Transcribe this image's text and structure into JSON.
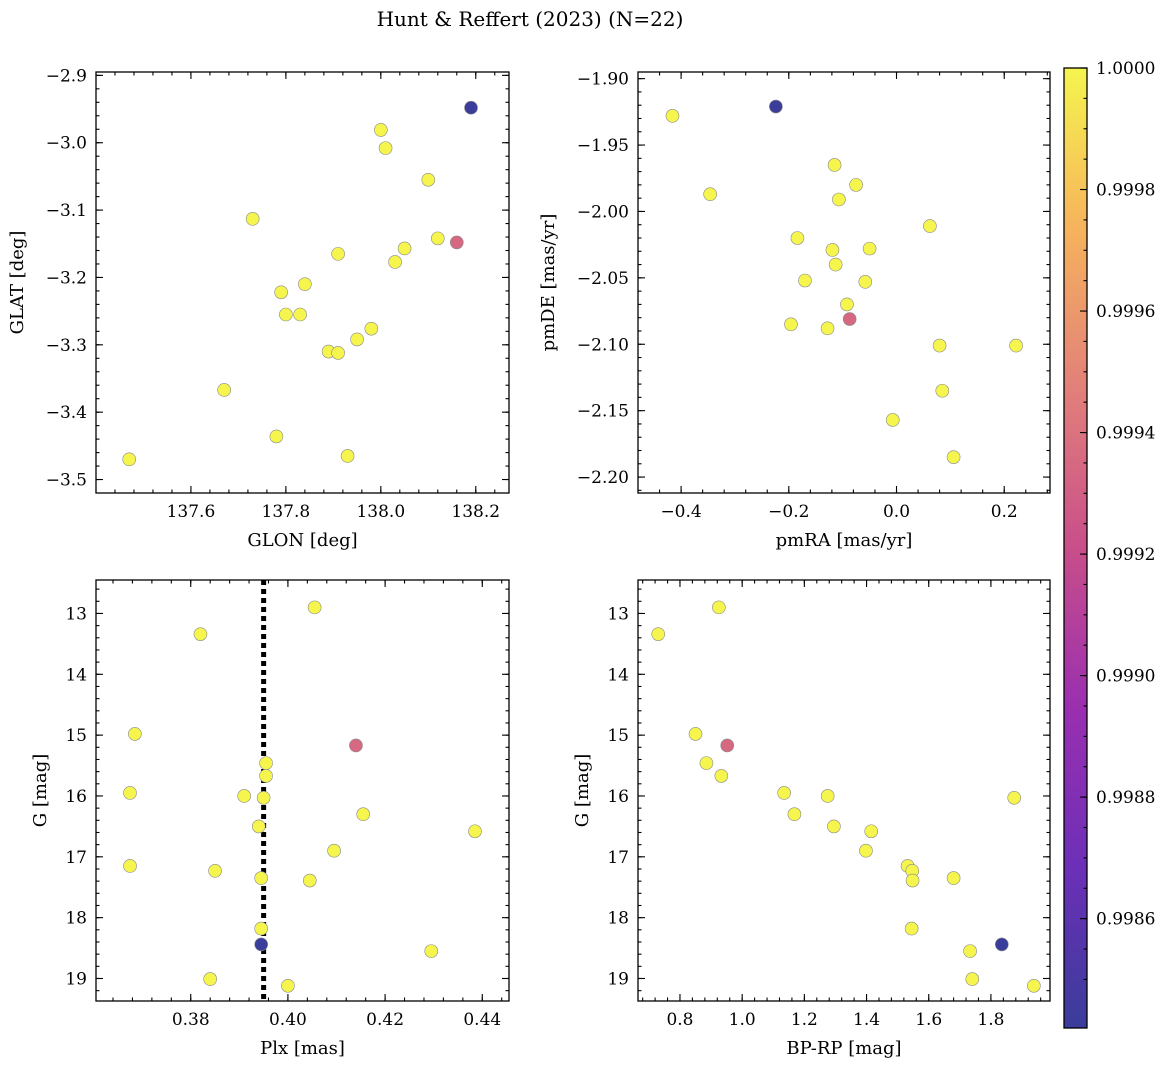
{
  "figure": {
    "title": "Hunt & Reffert (2023) (N=22)"
  },
  "colorbar": {
    "min": 0.99842,
    "max": 1.0,
    "ticks": [
      0.9986,
      0.9988,
      0.999,
      0.9992,
      0.9994,
      0.9996,
      0.9998,
      1.0
    ],
    "tick_labels": [
      "0.9986",
      "0.9988",
      "0.9990",
      "0.9992",
      "0.9994",
      "0.9996",
      "0.9998",
      "1.0000"
    ],
    "colormap": "plasma-like",
    "colors": [
      "#3a3d9a",
      "#6c2fb8",
      "#9a2fb0",
      "#c94e8a",
      "#e2807a",
      "#f6b35c",
      "#f5f54e"
    ]
  },
  "chart_data": [
    {
      "type": "scatter",
      "id": "glon-glat",
      "xlabel": "GLON [deg]",
      "ylabel": "GLAT [deg]",
      "xlim": [
        137.4,
        138.27
      ],
      "ylim": [
        -3.52,
        -2.895
      ],
      "y_inverted": false,
      "xticks": [
        137.6,
        137.8,
        138.0,
        138.2
      ],
      "xtick_labels": [
        "137.6",
        "137.8",
        "138.0",
        "138.2"
      ],
      "yticks": [
        -2.9,
        -3.0,
        -3.1,
        -3.2,
        -3.3,
        -3.4,
        -3.5
      ],
      "ytick_labels": [
        "−2.9",
        "−3.0",
        "−3.1",
        "−3.2",
        "−3.3",
        "−3.4",
        "−3.5"
      ],
      "x": [
        138.19,
        138.0,
        138.01,
        138.1,
        137.73,
        138.12,
        138.16,
        137.91,
        138.05,
        138.03,
        137.84,
        137.79,
        137.8,
        137.83,
        137.98,
        137.95,
        137.89,
        137.91,
        137.67,
        137.78,
        137.93,
        137.47
      ],
      "y": [
        -2.948,
        -2.981,
        -3.008,
        -3.055,
        -3.113,
        -3.142,
        -3.148,
        -3.165,
        -3.157,
        -3.177,
        -3.21,
        -3.222,
        -3.255,
        -3.255,
        -3.276,
        -3.292,
        -3.31,
        -3.312,
        -3.367,
        -3.436,
        -3.465,
        -3.47
      ],
      "prob": [
        0.99842,
        1.0,
        1.0,
        1.0,
        1.0,
        1.0,
        0.99935,
        1.0,
        1.0,
        1.0,
        1.0,
        1.0,
        1.0,
        1.0,
        1.0,
        1.0,
        1.0,
        1.0,
        1.0,
        1.0,
        1.0,
        1.0
      ]
    },
    {
      "type": "scatter",
      "id": "pmra-pmde",
      "xlabel": "pmRA [mas/yr]",
      "ylabel": "pmDE [mas/yr]",
      "xlim": [
        -0.48,
        0.285
      ],
      "ylim": [
        -2.212,
        -1.895
      ],
      "y_inverted": false,
      "xticks": [
        -0.4,
        -0.2,
        0.0,
        0.2
      ],
      "xtick_labels": [
        "−0.4",
        "−0.2",
        "0.0",
        "0.2"
      ],
      "yticks": [
        -1.9,
        -1.95,
        -2.0,
        -2.05,
        -2.1,
        -2.15,
        -2.2
      ],
      "ytick_labels": [
        "−1.90",
        "−1.95",
        "−2.00",
        "−2.05",
        "−2.10",
        "−2.15",
        "−2.20"
      ],
      "x": [
        -0.224,
        -0.416,
        -0.346,
        -0.115,
        -0.075,
        -0.107,
        -0.184,
        -0.119,
        -0.113,
        -0.05,
        -0.17,
        -0.058,
        -0.092,
        -0.196,
        -0.128,
        -0.087,
        0.062,
        0.08,
        0.222,
        0.085,
        -0.007,
        0.106
      ],
      "y": [
        -1.921,
        -1.928,
        -1.987,
        -1.965,
        -1.98,
        -1.991,
        -2.02,
        -2.029,
        -2.04,
        -2.028,
        -2.052,
        -2.053,
        -2.07,
        -2.085,
        -2.088,
        -2.081,
        -2.011,
        -2.101,
        -2.101,
        -2.135,
        -2.157,
        -2.185
      ],
      "prob": [
        0.99842,
        1.0,
        1.0,
        1.0,
        1.0,
        1.0,
        1.0,
        1.0,
        1.0,
        1.0,
        1.0,
        1.0,
        1.0,
        1.0,
        1.0,
        0.99935,
        1.0,
        1.0,
        1.0,
        1.0,
        1.0,
        1.0
      ]
    },
    {
      "type": "scatter",
      "id": "plx-g",
      "xlabel": "Plx [mas]",
      "ylabel": "G [mag]",
      "xlim": [
        0.3605,
        0.4455
      ],
      "ylim": [
        12.45,
        19.37
      ],
      "y_inverted": true,
      "vline": {
        "x": 0.395,
        "style": "dotted"
      },
      "xticks": [
        0.38,
        0.4,
        0.42,
        0.44
      ],
      "xtick_labels": [
        "0.38",
        "0.40",
        "0.42",
        "0.44"
      ],
      "yticks": [
        13,
        14,
        15,
        16,
        17,
        18,
        19
      ],
      "ytick_labels": [
        "13",
        "14",
        "15",
        "16",
        "17",
        "18",
        "19"
      ],
      "x": [
        0.4055,
        0.382,
        0.3685,
        0.414,
        0.3955,
        0.3955,
        0.3675,
        0.391,
        0.395,
        0.4155,
        0.394,
        0.4385,
        0.4095,
        0.3675,
        0.385,
        0.3945,
        0.4045,
        0.3945,
        0.3945,
        0.4295,
        0.384,
        0.4
      ],
      "y": [
        12.9,
        13.34,
        14.98,
        15.17,
        15.46,
        15.67,
        15.95,
        16.0,
        16.03,
        16.3,
        16.5,
        16.58,
        16.9,
        17.15,
        17.23,
        17.35,
        17.39,
        18.18,
        18.44,
        18.55,
        19.01,
        19.12
      ],
      "prob": [
        1.0,
        1.0,
        1.0,
        0.99935,
        1.0,
        1.0,
        1.0,
        1.0,
        1.0,
        1.0,
        1.0,
        1.0,
        1.0,
        1.0,
        1.0,
        1.0,
        1.0,
        1.0,
        0.99842,
        1.0,
        1.0,
        1.0
      ]
    },
    {
      "type": "scatter",
      "id": "bprp-g",
      "xlabel": "BP-RP [mag]",
      "ylabel": "G [mag]",
      "xlim": [
        0.665,
        1.99
      ],
      "ylim": [
        12.45,
        19.37
      ],
      "y_inverted": true,
      "xticks": [
        0.8,
        1.0,
        1.2,
        1.4,
        1.6,
        1.8
      ],
      "xtick_labels": [
        "0.8",
        "1.0",
        "1.2",
        "1.4",
        "1.6",
        "1.8"
      ],
      "yticks": [
        13,
        14,
        15,
        16,
        17,
        18,
        19
      ],
      "ytick_labels": [
        "13",
        "14",
        "15",
        "16",
        "17",
        "18",
        "19"
      ],
      "x": [
        0.925,
        0.73,
        0.85,
        0.952,
        0.885,
        0.933,
        1.135,
        1.275,
        1.875,
        1.168,
        1.295,
        1.415,
        1.398,
        1.532,
        1.547,
        1.548,
        1.68,
        1.545,
        1.835,
        1.733,
        1.74,
        1.938
      ],
      "y": [
        12.9,
        13.34,
        14.98,
        15.17,
        15.46,
        15.67,
        15.95,
        16.0,
        16.03,
        16.3,
        16.5,
        16.58,
        16.9,
        17.15,
        17.23,
        17.39,
        17.35,
        18.18,
        18.44,
        18.55,
        19.01,
        19.12
      ],
      "prob": [
        1.0,
        1.0,
        1.0,
        0.99935,
        1.0,
        1.0,
        1.0,
        1.0,
        1.0,
        1.0,
        1.0,
        1.0,
        1.0,
        1.0,
        1.0,
        1.0,
        1.0,
        1.0,
        0.99842,
        1.0,
        1.0,
        1.0
      ]
    }
  ]
}
